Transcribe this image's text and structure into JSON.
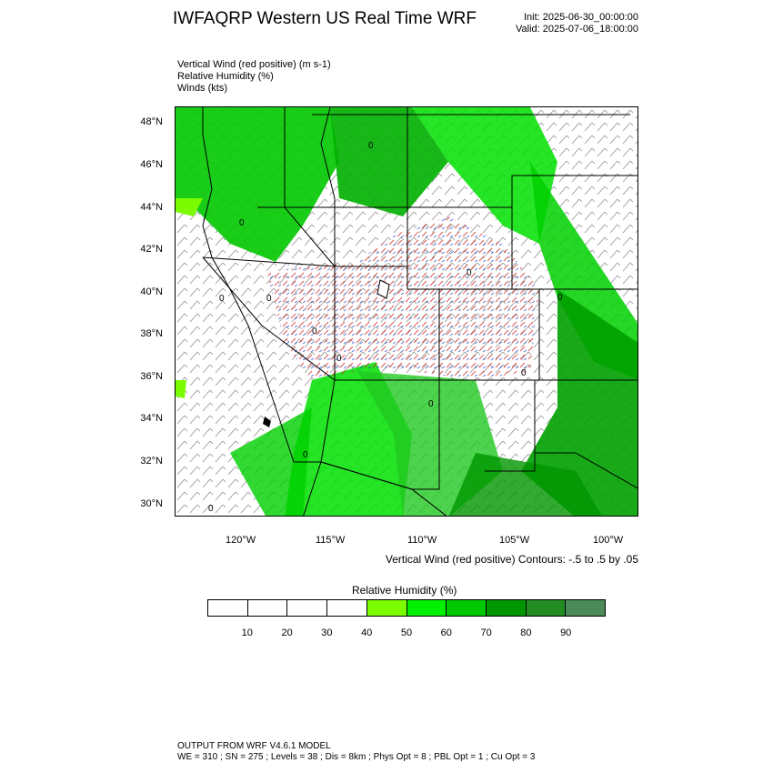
{
  "header": {
    "title": "IWFAQRP Western US Real Time WRF",
    "init": "Init: 2025-06-30_00:00:00",
    "valid": "Valid: 2025-07-06_18:00:00"
  },
  "fields": [
    "Vertical Wind (red positive)   (m s-1)",
    "Relative Humidity   (%)",
    "Winds   (kts)"
  ],
  "map": {
    "lat_labels": [
      "48°N",
      "46°N",
      "44°N",
      "42°N",
      "40°N",
      "38°N",
      "36°N",
      "34°N",
      "32°N",
      "30°N"
    ],
    "lon_labels": [
      "120°W",
      "115°W",
      "110°W",
      "105°W",
      "100°W"
    ],
    "contour_label": "0",
    "contour_note": "Vertical Wind (red positive) Contours: -.5 to .5 by .05"
  },
  "legend": {
    "title": "Relative Humidity  (%)",
    "ticks": [
      "10",
      "20",
      "30",
      "40",
      "50",
      "60",
      "70",
      "80",
      "90"
    ],
    "colors": [
      "#ffffff",
      "#ffffff",
      "#ffffff",
      "#ffffff",
      "#7cfc00",
      "#00f000",
      "#00c800",
      "#009600",
      "#228b22",
      "#4b8b5a"
    ]
  },
  "footer": {
    "line1": "OUTPUT FROM WRF V4.6.1 MODEL",
    "line2": "WE = 310 ; SN = 275 ; Levels = 38 ; Dis = 8km ; Phys Opt = 8 ; PBL Opt = 1 ; Cu Opt = 3"
  }
}
